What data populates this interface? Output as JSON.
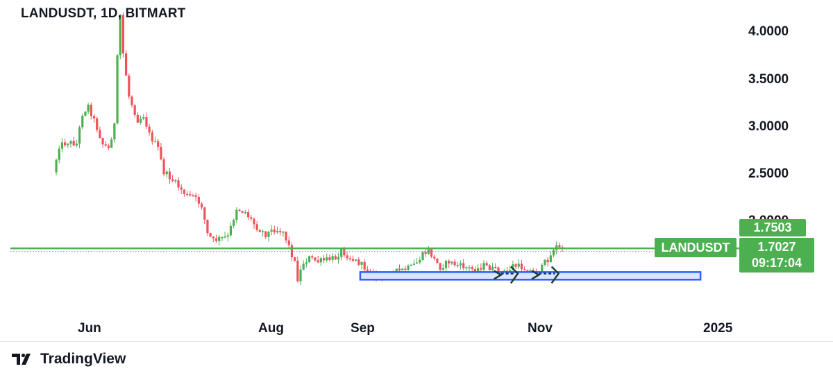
{
  "header": {
    "title": "LANDUSDT, 1D, BITMART"
  },
  "footer": {
    "brand": "TradingView"
  },
  "price_tags": {
    "symbol": "LANDUSDT",
    "high": "1.7503",
    "last": "1.7027",
    "countdown": "09:17:04"
  },
  "colors": {
    "up": "#4caf50",
    "down": "#f0525c",
    "level_line": "#4caf50",
    "zone_fill": "#dce4ff",
    "zone_border": "#2962ff",
    "tag_bg": "#4caf50",
    "arrow": "#1b3b2f"
  },
  "icons": {
    "brand_logo": "tradingview-logo-icon"
  },
  "chart_data": {
    "type": "candlestick",
    "symbol": "LANDUSDT",
    "interval": "1D",
    "exchange": "BITMART",
    "x_tick_labels": [
      "Jun",
      "Aug",
      "Sep",
      "Nov",
      "2025"
    ],
    "y_tick_labels": [
      "2.5000",
      "3.0000",
      "3.5000",
      "4.0000"
    ],
    "ylim": [
      1.2,
      4.25
    ],
    "date_range": [
      "2024-05-18",
      "2025-01-05"
    ],
    "grid": false,
    "annotations": {
      "horizontal_level": 1.7,
      "support_zone": {
        "from": "2024-09-05",
        "to": "2024-12-31",
        "low": 1.37,
        "high": 1.45
      },
      "arrows": [
        {
          "from": "2024-10-21",
          "to": "2024-10-28",
          "price": 1.42
        },
        {
          "from": "2024-11-03",
          "to": "2024-11-11",
          "price": 1.42
        }
      ]
    },
    "path_points": [
      [
        "2024-05-23",
        2.5
      ],
      [
        "2024-05-25",
        2.78
      ],
      [
        "2024-05-28",
        2.82
      ],
      [
        "2024-05-31",
        2.8
      ],
      [
        "2024-06-02",
        3.12
      ],
      [
        "2024-06-04",
        3.2
      ],
      [
        "2024-06-06",
        3.05
      ],
      [
        "2024-06-09",
        2.8
      ],
      [
        "2024-06-11",
        2.75
      ],
      [
        "2024-06-13",
        3.0
      ],
      [
        "2024-06-14",
        3.7
      ],
      [
        "2024-06-15",
        4.15
      ],
      [
        "2024-06-16",
        3.75
      ],
      [
        "2024-06-18",
        3.3
      ],
      [
        "2024-06-21",
        3.05
      ],
      [
        "2024-06-23",
        3.1
      ],
      [
        "2024-06-25",
        2.9
      ],
      [
        "2024-06-28",
        2.75
      ],
      [
        "2024-06-30",
        2.5
      ],
      [
        "2024-07-02",
        2.45
      ],
      [
        "2024-07-05",
        2.35
      ],
      [
        "2024-07-08",
        2.25
      ],
      [
        "2024-07-10",
        2.25
      ],
      [
        "2024-07-13",
        2.15
      ],
      [
        "2024-07-15",
        1.85
      ],
      [
        "2024-07-17",
        1.78
      ],
      [
        "2024-07-19",
        1.8
      ],
      [
        "2024-07-22",
        1.82
      ],
      [
        "2024-07-25",
        2.12
      ],
      [
        "2024-07-28",
        2.08
      ],
      [
        "2024-08-01",
        1.92
      ],
      [
        "2024-08-04",
        1.85
      ],
      [
        "2024-08-07",
        1.9
      ],
      [
        "2024-08-10",
        1.88
      ],
      [
        "2024-08-12",
        1.72
      ],
      [
        "2024-08-14",
        1.55
      ],
      [
        "2024-08-15",
        1.38
      ],
      [
        "2024-08-17",
        1.55
      ],
      [
        "2024-08-19",
        1.6
      ],
      [
        "2024-08-22",
        1.56
      ],
      [
        "2024-08-25",
        1.58
      ],
      [
        "2024-08-28",
        1.6
      ],
      [
        "2024-08-30",
        1.68
      ],
      [
        "2024-09-02",
        1.6
      ],
      [
        "2024-09-05",
        1.55
      ],
      [
        "2024-09-08",
        1.47
      ],
      [
        "2024-09-10",
        1.42
      ],
      [
        "2024-09-12",
        1.4
      ],
      [
        "2024-09-14",
        1.42
      ],
      [
        "2024-09-17",
        1.45
      ],
      [
        "2024-09-20",
        1.47
      ],
      [
        "2024-09-23",
        1.5
      ],
      [
        "2024-09-25",
        1.55
      ],
      [
        "2024-09-27",
        1.63
      ],
      [
        "2024-09-29",
        1.68
      ],
      [
        "2024-10-01",
        1.58
      ],
      [
        "2024-10-03",
        1.5
      ],
      [
        "2024-10-06",
        1.56
      ],
      [
        "2024-10-09",
        1.52
      ],
      [
        "2024-10-12",
        1.5
      ],
      [
        "2024-10-15",
        1.47
      ],
      [
        "2024-10-18",
        1.52
      ],
      [
        "2024-10-21",
        1.48
      ],
      [
        "2024-10-24",
        1.44
      ],
      [
        "2024-10-26",
        1.45
      ],
      [
        "2024-10-28",
        1.52
      ],
      [
        "2024-10-31",
        1.5
      ],
      [
        "2024-11-02",
        1.47
      ],
      [
        "2024-11-04",
        1.45
      ],
      [
        "2024-11-06",
        1.44
      ],
      [
        "2024-11-08",
        1.55
      ],
      [
        "2024-11-10",
        1.62
      ],
      [
        "2024-11-11",
        1.7
      ],
      [
        "2024-11-12",
        1.72
      ],
      [
        "2024-11-13",
        1.7
      ],
      [
        "2024-11-14",
        1.7
      ]
    ]
  }
}
